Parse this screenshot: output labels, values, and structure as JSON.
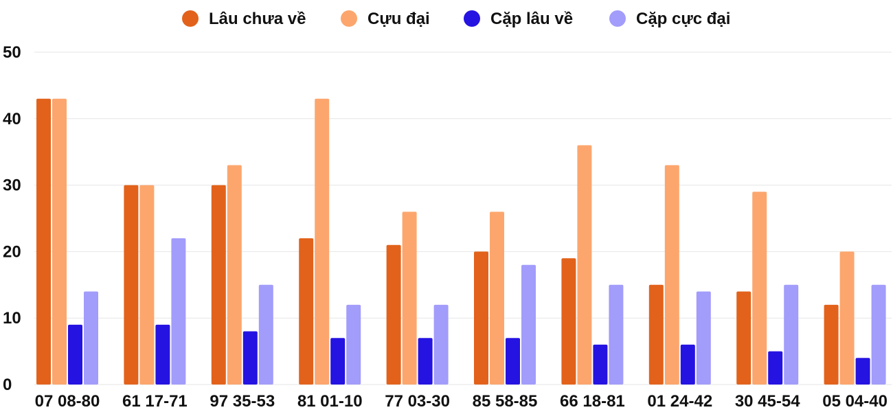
{
  "chart_data": {
    "type": "bar",
    "categories": [
      "07 08-80",
      "61 17-71",
      "97 35-53",
      "81 01-10",
      "77 03-30",
      "85 58-85",
      "66 18-81",
      "01 24-42",
      "30 45-54",
      "05 04-40"
    ],
    "series": [
      {
        "name": "Lâu chưa về",
        "color": "#e2621b",
        "values": [
          43,
          30,
          30,
          22,
          21,
          20,
          19,
          15,
          14,
          12
        ]
      },
      {
        "name": "Cựu đại",
        "color": "#fca66d",
        "values": [
          43,
          30,
          33,
          43,
          26,
          26,
          36,
          33,
          29,
          20
        ]
      },
      {
        "name": "Cặp lâu về",
        "color": "#2513e2",
        "values": [
          9,
          9,
          8,
          7,
          7,
          7,
          6,
          6,
          5,
          4
        ]
      },
      {
        "name": "Cặp cực đại",
        "color": "#a29cfb",
        "values": [
          14,
          22,
          15,
          12,
          12,
          18,
          15,
          14,
          15,
          15
        ]
      }
    ],
    "yticks": [
      "0",
      "10",
      "20",
      "30",
      "40",
      "50"
    ],
    "ylim": [
      0,
      50
    ],
    "title": "",
    "xlabel": "",
    "ylabel": "",
    "legend_position": "top"
  }
}
